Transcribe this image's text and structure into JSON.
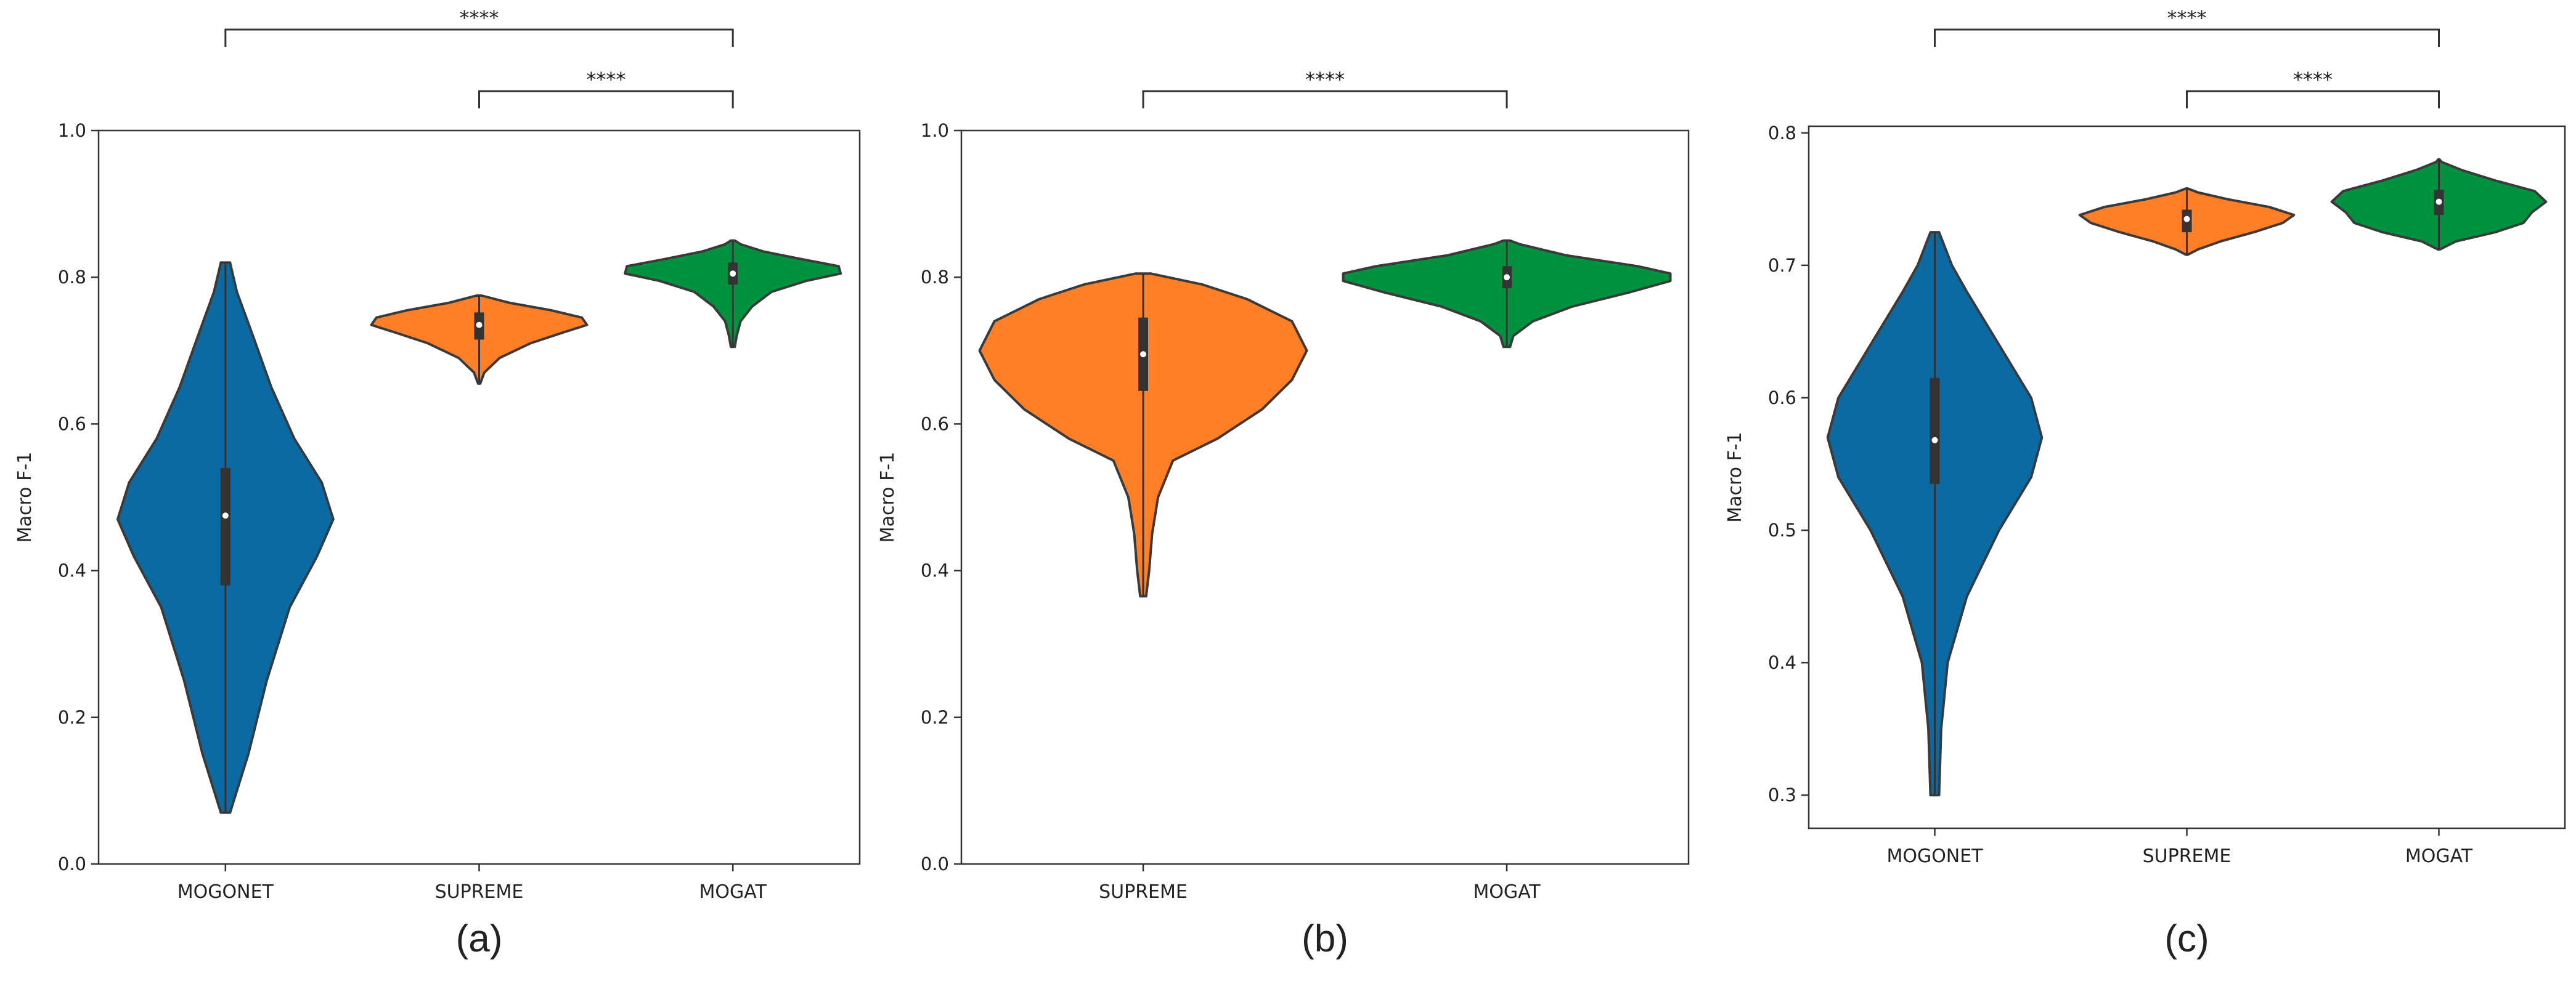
{
  "chart_data": [
    {
      "type": "violin",
      "panel_label": "(a)",
      "ylabel": "Macro F-1",
      "ylim": [
        0.0,
        1.0
      ],
      "yticks": [
        "0.0",
        "0.2",
        "0.4",
        "0.6",
        "0.8",
        "1.0"
      ],
      "categories": [
        "MOGONET",
        "SUPREME",
        "MOGAT"
      ],
      "series": [
        {
          "name": "MOGONET",
          "color": "#0b6aa2",
          "min": 0.07,
          "max": 0.82,
          "median": 0.475,
          "q1": 0.38,
          "q3": 0.54,
          "profile": [
            [
              0.07,
              0.002
            ],
            [
              0.15,
              0.01
            ],
            [
              0.25,
              0.018
            ],
            [
              0.35,
              0.028
            ],
            [
              0.42,
              0.04
            ],
            [
              0.47,
              0.047
            ],
            [
              0.52,
              0.042
            ],
            [
              0.58,
              0.03
            ],
            [
              0.65,
              0.02
            ],
            [
              0.72,
              0.012
            ],
            [
              0.78,
              0.005
            ],
            [
              0.82,
              0.002
            ]
          ]
        },
        {
          "name": "SUPREME",
          "color": "#ff7f27",
          "min": 0.655,
          "max": 0.775,
          "median": 0.735,
          "q1": 0.715,
          "q3": 0.752,
          "profile": [
            [
              0.655,
              0.004
            ],
            [
              0.67,
              0.02
            ],
            [
              0.69,
              0.08
            ],
            [
              0.71,
              0.2
            ],
            [
              0.725,
              0.33
            ],
            [
              0.735,
              0.42
            ],
            [
              0.745,
              0.4
            ],
            [
              0.755,
              0.28
            ],
            [
              0.765,
              0.12
            ],
            [
              0.775,
              0.01
            ]
          ]
        },
        {
          "name": "MOGAT",
          "color": "#00923f",
          "min": 0.705,
          "max": 0.85,
          "median": 0.805,
          "q1": 0.79,
          "q3": 0.82,
          "profile": [
            [
              0.705,
              0.01
            ],
            [
              0.72,
              0.02
            ],
            [
              0.74,
              0.04
            ],
            [
              0.76,
              0.1
            ],
            [
              0.78,
              0.2
            ],
            [
              0.795,
              0.38
            ],
            [
              0.805,
              0.56
            ],
            [
              0.815,
              0.55
            ],
            [
              0.825,
              0.35
            ],
            [
              0.835,
              0.16
            ],
            [
              0.845,
              0.04
            ],
            [
              0.85,
              0.01
            ]
          ]
        }
      ],
      "significance": [
        {
          "from": "MOGONET",
          "to": "MOGAT",
          "label": "****"
        },
        {
          "from": "SUPREME",
          "to": "MOGAT",
          "label": "****"
        }
      ]
    },
    {
      "type": "violin",
      "panel_label": "(b)",
      "ylabel": "Macro F-1",
      "ylim": [
        0.0,
        1.0
      ],
      "yticks": [
        "0.0",
        "0.2",
        "0.4",
        "0.6",
        "0.8",
        "1.0"
      ],
      "categories": [
        "SUPREME",
        "MOGAT"
      ],
      "series": [
        {
          "name": "SUPREME",
          "color": "#ff7f27",
          "min": 0.365,
          "max": 0.805,
          "median": 0.695,
          "q1": 0.645,
          "q3": 0.745,
          "profile": [
            [
              0.365,
              0.002
            ],
            [
              0.4,
              0.004
            ],
            [
              0.45,
              0.006
            ],
            [
              0.5,
              0.01
            ],
            [
              0.55,
              0.02
            ],
            [
              0.58,
              0.05
            ],
            [
              0.62,
              0.08
            ],
            [
              0.66,
              0.1
            ],
            [
              0.7,
              0.11
            ],
            [
              0.74,
              0.1
            ],
            [
              0.77,
              0.07
            ],
            [
              0.79,
              0.04
            ],
            [
              0.805,
              0.005
            ]
          ]
        },
        {
          "name": "MOGAT",
          "color": "#00923f",
          "min": 0.705,
          "max": 0.85,
          "median": 0.8,
          "q1": 0.785,
          "q3": 0.815,
          "profile": [
            [
              0.705,
              0.01
            ],
            [
              0.72,
              0.02
            ],
            [
              0.74,
              0.08
            ],
            [
              0.76,
              0.2
            ],
            [
              0.78,
              0.38
            ],
            [
              0.795,
              0.5
            ],
            [
              0.805,
              0.5
            ],
            [
              0.815,
              0.4
            ],
            [
              0.83,
              0.18
            ],
            [
              0.845,
              0.04
            ],
            [
              0.85,
              0.01
            ]
          ]
        }
      ],
      "significance": [
        {
          "from": "SUPREME",
          "to": "MOGAT",
          "label": "****"
        }
      ]
    },
    {
      "type": "violin",
      "panel_label": "(c)",
      "ylabel": "Macro F-1",
      "ylim": [
        0.275,
        0.805
      ],
      "yticks": [
        "0.3",
        "0.4",
        "0.5",
        "0.6",
        "0.7",
        "0.8"
      ],
      "categories": [
        "MOGONET",
        "SUPREME",
        "MOGAT"
      ],
      "series": [
        {
          "name": "MOGONET",
          "color": "#0b6aa2",
          "min": 0.3,
          "max": 0.725,
          "median": 0.568,
          "q1": 0.535,
          "q3": 0.615,
          "profile": [
            [
              0.3,
              0.002
            ],
            [
              0.35,
              0.003
            ],
            [
              0.4,
              0.006
            ],
            [
              0.45,
              0.015
            ],
            [
              0.5,
              0.03
            ],
            [
              0.54,
              0.045
            ],
            [
              0.57,
              0.05
            ],
            [
              0.6,
              0.045
            ],
            [
              0.64,
              0.03
            ],
            [
              0.68,
              0.015
            ],
            [
              0.7,
              0.008
            ],
            [
              0.725,
              0.002
            ]
          ]
        },
        {
          "name": "SUPREME",
          "color": "#ff7f27",
          "min": 0.708,
          "max": 0.758,
          "median": 0.735,
          "q1": 0.725,
          "q3": 0.742,
          "profile": [
            [
              0.708,
              0.004
            ],
            [
              0.712,
              0.05
            ],
            [
              0.718,
              0.15
            ],
            [
              0.725,
              0.3
            ],
            [
              0.732,
              0.43
            ],
            [
              0.738,
              0.48
            ],
            [
              0.744,
              0.37
            ],
            [
              0.75,
              0.18
            ],
            [
              0.755,
              0.05
            ],
            [
              0.758,
              0.004
            ]
          ]
        },
        {
          "name": "MOGAT",
          "color": "#00923f",
          "min": 0.712,
          "max": 0.78,
          "median": 0.748,
          "q1": 0.738,
          "q3": 0.757,
          "profile": [
            [
              0.712,
              0.004
            ],
            [
              0.718,
              0.06
            ],
            [
              0.725,
              0.2
            ],
            [
              0.732,
              0.3
            ],
            [
              0.74,
              0.33
            ],
            [
              0.748,
              0.38
            ],
            [
              0.756,
              0.34
            ],
            [
              0.764,
              0.2
            ],
            [
              0.772,
              0.08
            ],
            [
              0.778,
              0.01
            ],
            [
              0.78,
              0.002
            ]
          ]
        }
      ],
      "significance": [
        {
          "from": "MOGONET",
          "to": "MOGAT",
          "label": "****"
        },
        {
          "from": "SUPREME",
          "to": "MOGAT",
          "label": "****"
        }
      ]
    }
  ]
}
